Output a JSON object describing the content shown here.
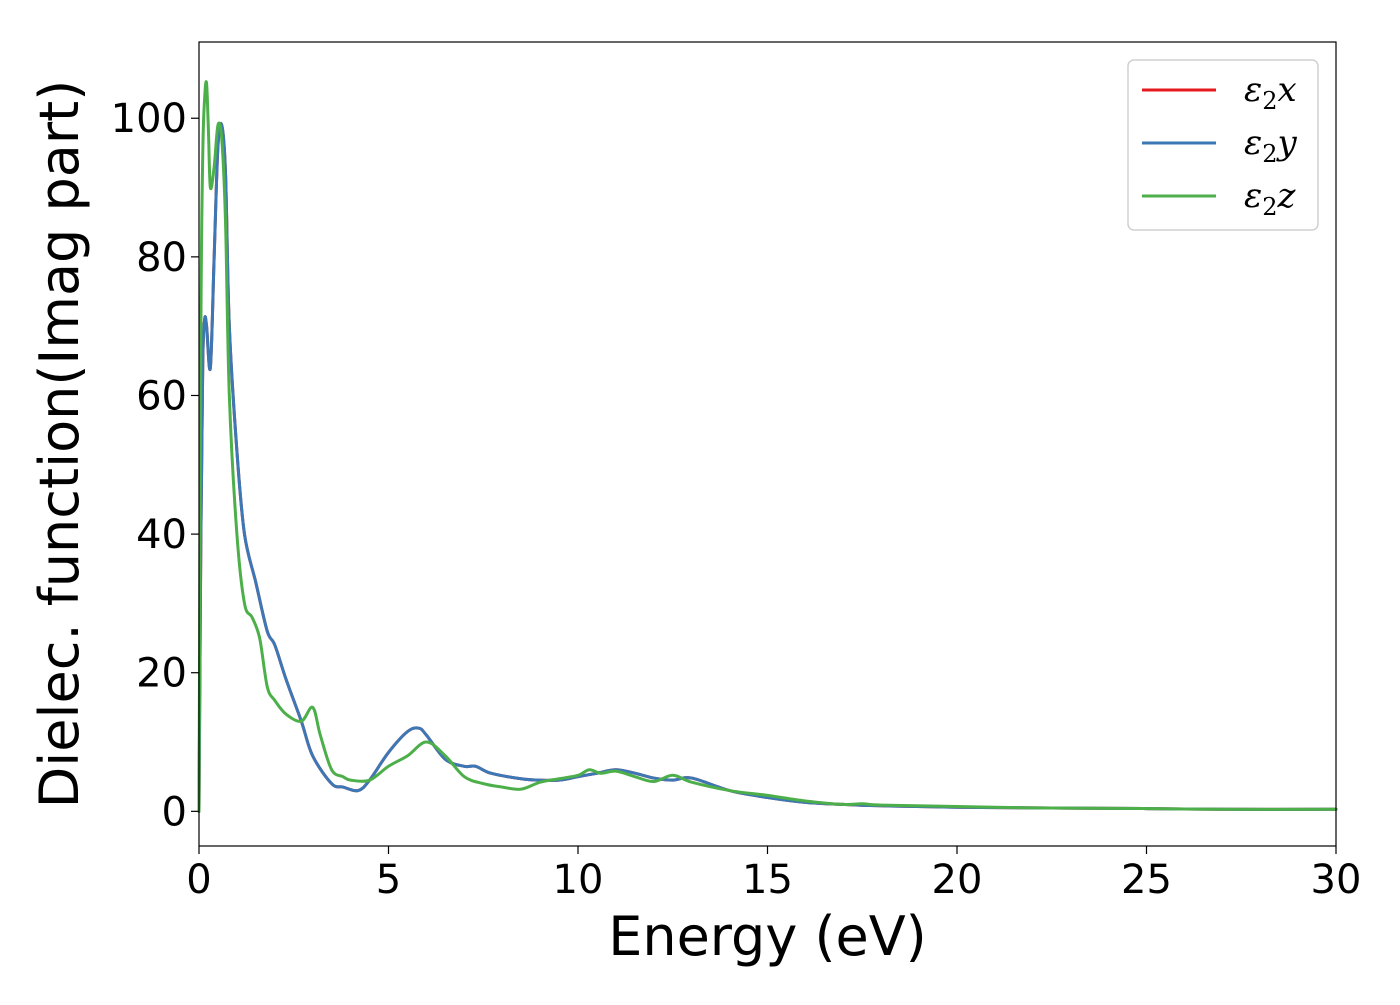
{
  "chart_data": {
    "type": "line",
    "title": "",
    "xlabel": "Energy (eV)",
    "ylabel": "Dielec. function(Imag part)",
    "xlim": [
      0,
      30
    ],
    "ylim": [
      -5,
      111
    ],
    "xticks": [
      0,
      5,
      10,
      15,
      20,
      25,
      30
    ],
    "yticks": [
      0,
      20,
      40,
      60,
      80,
      100
    ],
    "xtick_labels": [
      "0",
      "5",
      "10",
      "15",
      "20",
      "25",
      "30"
    ],
    "ytick_labels": [
      "0",
      "20",
      "40",
      "60",
      "80",
      "100"
    ],
    "grid": false,
    "legend_position": "top-right",
    "series": [
      {
        "name": "ε2x",
        "legend_main": "ε",
        "legend_sub": "2",
        "legend_tail": "x",
        "color": "#e41a1c",
        "x": [
          0,
          0.05,
          0.1,
          0.15,
          0.2,
          0.3,
          0.4,
          0.5,
          0.6,
          0.7,
          0.8,
          1.0,
          1.2,
          1.5,
          1.8,
          2.0,
          2.3,
          2.7,
          3.0,
          3.5,
          3.8,
          4.2,
          4.5,
          5.0,
          5.5,
          5.8,
          6.0,
          6.5,
          7.0,
          7.3,
          7.7,
          8.5,
          9.0,
          9.5,
          10.0,
          10.5,
          11.0,
          11.5,
          12.0,
          12.5,
          13.0,
          14.0,
          15.0,
          16.0,
          17.0,
          18.0,
          20.0,
          22.0,
          25.0,
          27.0,
          30.0
        ],
        "values": [
          0,
          40,
          65,
          71,
          70,
          64,
          80,
          96,
          99,
          92,
          70,
          52,
          40,
          33,
          26,
          24,
          19,
          13,
          8,
          4,
          3.5,
          3,
          4.5,
          8.5,
          11.5,
          12,
          11,
          7.5,
          6.5,
          6.5,
          5.5,
          4.7,
          4.5,
          4.5,
          5,
          5.5,
          6,
          5.5,
          4.8,
          4.5,
          4.8,
          3,
          2,
          1.3,
          1,
          0.8,
          0.6,
          0.5,
          0.4,
          0.3,
          0.3
        ]
      },
      {
        "name": "ε2y",
        "legend_main": "ε",
        "legend_sub": "2",
        "legend_tail": "y",
        "color": "#3b78b5",
        "x": [
          0,
          0.05,
          0.1,
          0.15,
          0.2,
          0.3,
          0.4,
          0.5,
          0.6,
          0.7,
          0.8,
          1.0,
          1.2,
          1.5,
          1.8,
          2.0,
          2.3,
          2.7,
          3.0,
          3.5,
          3.8,
          4.2,
          4.5,
          5.0,
          5.5,
          5.8,
          6.0,
          6.5,
          7.0,
          7.3,
          7.7,
          8.5,
          9.0,
          9.5,
          10.0,
          10.5,
          11.0,
          11.5,
          12.0,
          12.5,
          13.0,
          14.0,
          15.0,
          16.0,
          17.0,
          18.0,
          20.0,
          22.0,
          25.0,
          27.0,
          30.0
        ],
        "values": [
          0,
          40,
          65,
          71,
          70,
          64,
          80,
          96,
          99,
          92,
          70,
          52,
          40,
          33,
          26,
          24,
          19,
          13,
          8,
          4,
          3.5,
          3,
          4.5,
          8.5,
          11.5,
          12,
          11,
          7.5,
          6.5,
          6.5,
          5.5,
          4.7,
          4.5,
          4.5,
          5,
          5.5,
          6,
          5.5,
          4.8,
          4.5,
          4.8,
          3,
          2,
          1.3,
          1,
          0.8,
          0.6,
          0.5,
          0.4,
          0.3,
          0.3
        ]
      },
      {
        "name": "ε2z",
        "legend_main": "ε",
        "legend_sub": "2",
        "legend_tail": "z",
        "color": "#4daf4a",
        "x": [
          0,
          0.05,
          0.1,
          0.15,
          0.2,
          0.25,
          0.3,
          0.4,
          0.5,
          0.6,
          0.7,
          0.8,
          1.0,
          1.2,
          1.4,
          1.6,
          1.8,
          2.0,
          2.3,
          2.7,
          3.0,
          3.2,
          3.5,
          3.8,
          4.0,
          4.5,
          5.0,
          5.5,
          6.0,
          6.5,
          7.0,
          7.5,
          8.0,
          8.5,
          9.0,
          9.5,
          10.0,
          10.3,
          10.6,
          11.0,
          11.5,
          12.0,
          12.5,
          13.0,
          14.0,
          15.0,
          16.0,
          17.0,
          17.5,
          18.0,
          20.0,
          22.0,
          25.0,
          27.0,
          30.0
        ],
        "values": [
          0,
          70,
          95,
          103,
          105,
          98,
          90,
          93,
          99,
          97,
          85,
          60,
          40,
          30,
          28,
          25,
          18,
          16,
          14,
          13,
          15,
          11,
          6,
          5,
          4.5,
          4.5,
          6.5,
          8,
          10,
          8,
          5,
          4,
          3.5,
          3.2,
          4.2,
          4.7,
          5.2,
          6,
          5.5,
          5.8,
          5,
          4.3,
          5.2,
          4.2,
          3,
          2.3,
          1.5,
          1.0,
          1.1,
          0.9,
          0.7,
          0.5,
          0.4,
          0.3,
          0.3
        ]
      }
    ]
  }
}
